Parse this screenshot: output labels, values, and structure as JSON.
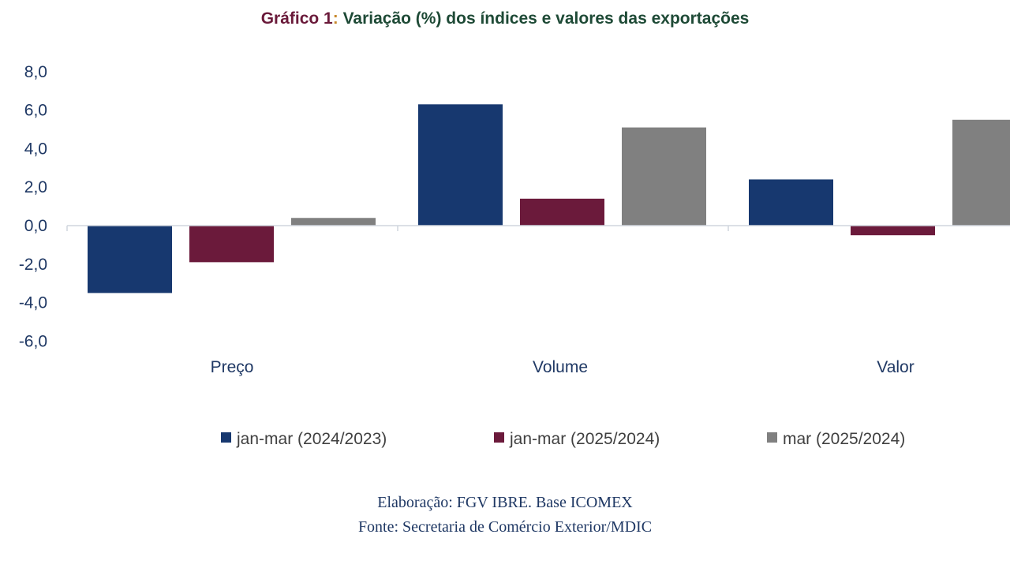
{
  "title": {
    "prefix": "Gráfico 1",
    "colon": ":",
    "main": " Variação (%) dos índices e valores das exportações"
  },
  "chart_data": {
    "type": "bar",
    "title": "Gráfico 1: Variação (%) dos índices e valores das exportações",
    "categories": [
      "Preço",
      "Volume",
      "Valor"
    ],
    "series": [
      {
        "name": "jan-mar (2024/2023)",
        "color": "#17386f",
        "values": [
          -3.5,
          6.3,
          2.4
        ]
      },
      {
        "name": "jan-mar (2025/2024)",
        "color": "#6b1a3b",
        "values": [
          -1.9,
          1.4,
          -0.5
        ]
      },
      {
        "name": "mar (2025/2024)",
        "color": "#808080",
        "values": [
          0.4,
          5.1,
          5.5
        ]
      }
    ],
    "ylim": [
      -6,
      8
    ],
    "yticks": [
      "8,0",
      "6,0",
      "4,0",
      "2,0",
      "0,0",
      "-2,0",
      "-4,0",
      "-6,0"
    ],
    "ytick_values": [
      8,
      6,
      4,
      2,
      0,
      -2,
      -4,
      -6
    ],
    "xlabel": "",
    "ylabel": "",
    "legend_position": "bottom",
    "grid": false
  },
  "footer": {
    "elaboracao": "Elaboração: FGV IBRE. Base ICOMEX",
    "fonte": "Fonte: Secretaria de Comércio Exterior/MDIC"
  }
}
